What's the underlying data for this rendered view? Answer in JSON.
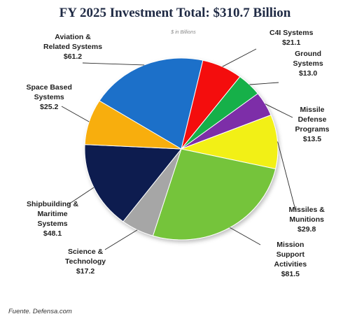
{
  "chart_data": {
    "type": "pie",
    "title": "FY 2025 Investment Total: $310.7 Billion",
    "unit_note": "$ in Billions",
    "slices": [
      {
        "label": "Aviation & Related Systems",
        "lines": [
          "Aviation &",
          "Related Systems"
        ],
        "value": 61.2,
        "value_label": "$61.2",
        "color": "#1c6fc9"
      },
      {
        "label": "C4I Systems",
        "lines": [
          "C4I Systems"
        ],
        "value": 21.1,
        "value_label": "$21.1",
        "color": "#f40f0f"
      },
      {
        "label": "Ground Systems",
        "lines": [
          "Ground",
          "Systems"
        ],
        "value": 13.0,
        "value_label": "$13.0",
        "color": "#13b04a"
      },
      {
        "label": "Missile Defense Programs",
        "lines": [
          "Missile",
          "Defense",
          "Programs"
        ],
        "value": 13.5,
        "value_label": "$13.5",
        "color": "#7d2fa8"
      },
      {
        "label": "Missiles & Munitions",
        "lines": [
          "Missiles &",
          "Munitions"
        ],
        "value": 29.8,
        "value_label": "$29.8",
        "color": "#f2f016"
      },
      {
        "label": "Mission Support Activities",
        "lines": [
          "Mission",
          "Support",
          "Activities"
        ],
        "value": 81.5,
        "value_label": "$81.5",
        "color": "#74c43a"
      },
      {
        "label": "Science & Technology",
        "lines": [
          "Science &",
          "Technology"
        ],
        "value": 17.2,
        "value_label": "$17.2",
        "color": "#a6a6a6"
      },
      {
        "label": "Shipbuilding & Maritime Systems",
        "lines": [
          "Shipbuilding &",
          "Maritime",
          "Systems"
        ],
        "value": 48.1,
        "value_label": "$48.1",
        "color": "#0d1f4f"
      },
      {
        "label": "Space Based Systems",
        "lines": [
          "Space Based",
          "Systems"
        ],
        "value": 25.2,
        "value_label": "$25.2",
        "color": "#f8ae0e"
      }
    ]
  },
  "source": "Fuente. Defensa.com"
}
